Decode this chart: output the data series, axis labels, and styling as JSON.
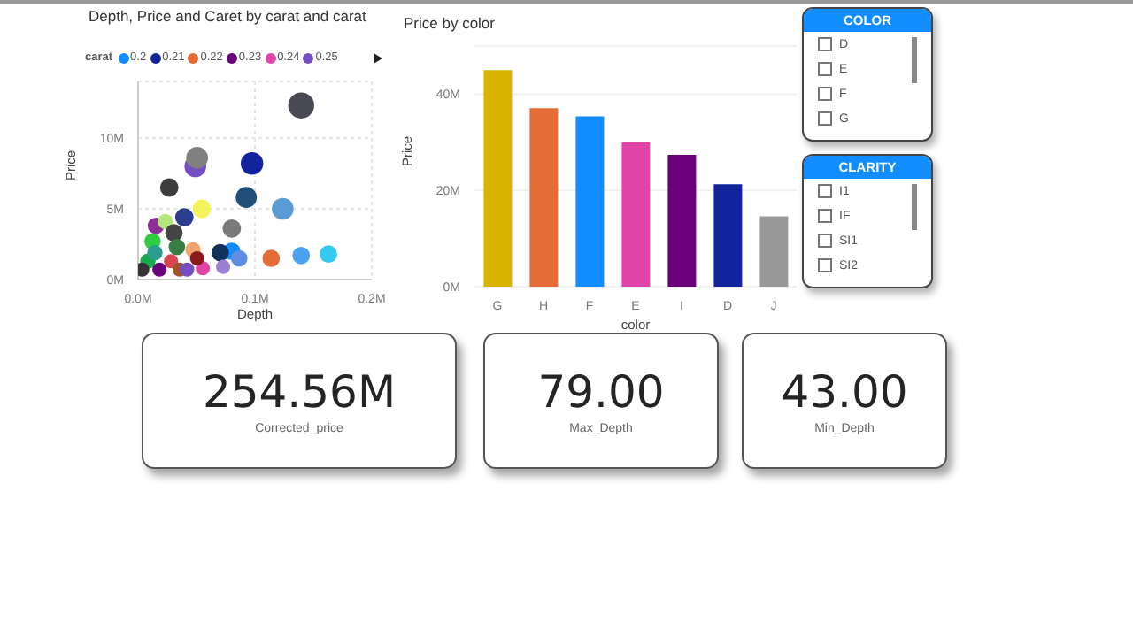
{
  "chart_data": [
    {
      "type": "bubble",
      "title": "Depth, Price and Caret by carat and carat",
      "xlabel": "Depth",
      "ylabel": "Price",
      "legend_title": "carat",
      "legend": "top left",
      "grid": true,
      "xlim": [
        0,
        200000
      ],
      "xticks": [
        {
          "value": 0,
          "label": "0.0M"
        },
        {
          "value": 100000,
          "label": "0.1M"
        },
        {
          "value": 200000,
          "label": "0.2M"
        }
      ],
      "ylim": [
        0,
        14000000
      ],
      "yticks": [
        {
          "value": 0,
          "label": "0M"
        },
        {
          "value": 5000000,
          "label": "5M"
        },
        {
          "value": 10000000,
          "label": "10M"
        }
      ],
      "series": [
        {
          "name": "0.2",
          "color": "#118dff",
          "x": [
            80200
          ],
          "values": [
            2000000
          ],
          "sizes": [
            0.45
          ]
        },
        {
          "name": "0.21",
          "color": "#12239e",
          "x": [
            97500
          ],
          "values": [
            8200000
          ],
          "sizes": [
            0.75
          ]
        },
        {
          "name": "0.22",
          "color": "#e66c37",
          "x": [
            113900
          ],
          "values": [
            1500000
          ],
          "sizes": [
            0.45
          ]
        },
        {
          "name": "0.23",
          "color": "#6b007b",
          "x": [
            18300
          ],
          "values": [
            700000
          ],
          "sizes": [
            0.3
          ]
        },
        {
          "name": "0.24",
          "color": "#e044a7",
          "x": [
            55400
          ],
          "values": [
            800000
          ],
          "sizes": [
            0.3
          ]
        },
        {
          "name": "0.25",
          "color": "#744ec2",
          "x": [
            49000
          ],
          "values": [
            8000000
          ],
          "sizes": [
            0.7
          ]
        },
        {
          "x": [
            139600,
            50500,
            26700,
            92600,
            123800,
            54500,
            39600,
            80200,
            15300,
            23300,
            30700,
            33200,
            12400,
            47000,
            70300,
            86600,
            139600,
            162900,
            72800,
            8400,
            3500,
            28200,
            35600,
            42000,
            14400,
            50500
          ],
          "values": [
            12300000,
            8600000,
            6500000,
            5800000,
            5000000,
            5000000,
            4400000,
            3600000,
            3800000,
            4100000,
            3300000,
            2300000,
            2700000,
            2100000,
            1900000,
            1500000,
            1700000,
            1800000,
            900000,
            1300000,
            700000,
            1300000,
            700000,
            700000,
            1900000,
            1500000
          ],
          "sizes": [
            1,
            0.7,
            0.5,
            0.65,
            0.7,
            0.5,
            0.5,
            0.5,
            0.4,
            0.35,
            0.45,
            0.4,
            0.4,
            0.35,
            0.45,
            0.4,
            0.45,
            0.45,
            0.3,
            0.35,
            0.3,
            0.3,
            0.3,
            0.3,
            0.35,
            0.3
          ],
          "colors": [
            "#4a4a55",
            "#808080",
            "#3d3d3d",
            "#1f4e79",
            "#5b9bd5",
            "#f2f25a",
            "#2c3e8f",
            "#7a7a7a",
            "#8b2f97",
            "#b5e67a",
            "#444444",
            "#3a7d44",
            "#2ecc40",
            "#f2a36b",
            "#12325e",
            "#5e8ee0",
            "#4aa3f0",
            "#33c9f0",
            "#9b7fd4",
            "#1aa84c",
            "#333333",
            "#d64550",
            "#a0522d",
            "#744ec2",
            "#2a9d8f",
            "#8b1a1a"
          ]
        }
      ]
    },
    {
      "type": "bar",
      "title": "Price by color",
      "xlabel": "color",
      "ylabel": "Price",
      "grid": "y",
      "categories": [
        "G",
        "H",
        "F",
        "E",
        "I",
        "D",
        "J"
      ],
      "values": [
        45000000,
        37100000,
        35400000,
        30000000,
        27400000,
        21300000,
        14600000
      ],
      "colors": [
        "#d9b300",
        "#e66c37",
        "#118dff",
        "#e044a7",
        "#6b007b",
        "#12239e",
        "#999999"
      ],
      "ylim": [
        0,
        50000000
      ],
      "yticks": [
        {
          "value": 0,
          "label": "0M"
        },
        {
          "value": 20000000,
          "label": "20M"
        },
        {
          "value": 40000000,
          "label": "40M"
        }
      ]
    },
    {
      "type": "other",
      "title": "COLOR",
      "annotations": [
        "D",
        "E",
        "F",
        "G"
      ]
    },
    {
      "type": "other",
      "title": "CLARITY",
      "annotations": [
        "I1",
        "IF",
        "SI1",
        "SI2"
      ]
    },
    {
      "type": "other",
      "annotations": [
        "254.56M",
        "Corrected_price"
      ]
    },
    {
      "type": "other",
      "annotations": [
        "79.00",
        "Max_Depth"
      ]
    },
    {
      "type": "other",
      "annotations": [
        "43.00",
        "Min_Depth"
      ]
    }
  ]
}
